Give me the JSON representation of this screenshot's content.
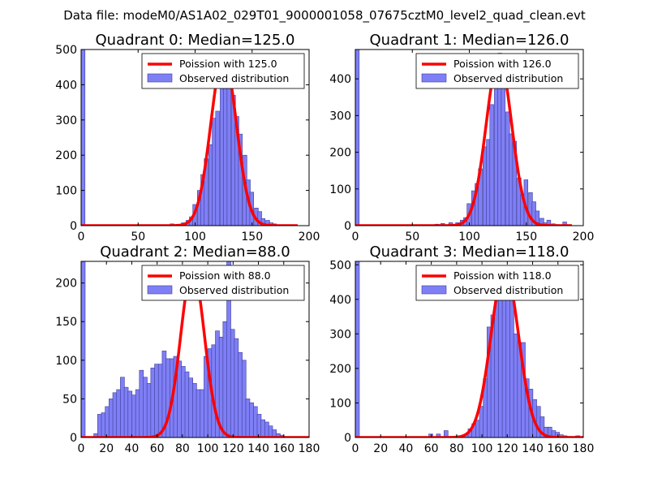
{
  "suptitle": "Data file: modeM0/AS1A02_029T01_9000001058_07675cztM0_level2_quad_clean.evt",
  "colors": {
    "bar_fill": "#7f7ff5",
    "bar_edge": "#3c3c9c",
    "curve": "#ff0000",
    "axes": "#000000",
    "background": "#ffffff"
  },
  "chart_data": [
    {
      "type": "bar",
      "title": "Quadrant 0: Median=125.0",
      "xlim": [
        0,
        200
      ],
      "ylim": [
        0,
        500
      ],
      "xticks": [
        "0",
        "50",
        "100",
        "150",
        "200"
      ],
      "xtick_values": [
        0,
        50,
        100,
        150,
        200
      ],
      "yticks": [
        "0",
        "100",
        "200",
        "300",
        "400",
        "500"
      ],
      "ytick_values": [
        0,
        100,
        200,
        300,
        400,
        500
      ],
      "legend": {
        "line_label": "Poission with 125.0",
        "bar_label": "Observed distribution",
        "position": "upper right"
      },
      "bin_width": 3.4,
      "bins": [
        [
          0,
          500
        ],
        [
          78,
          5
        ],
        [
          85,
          3
        ],
        [
          88,
          8
        ],
        [
          92,
          15
        ],
        [
          95,
          25
        ],
        [
          98,
          60
        ],
        [
          102,
          100
        ],
        [
          105,
          145
        ],
        [
          108,
          190
        ],
        [
          112,
          230
        ],
        [
          115,
          305
        ],
        [
          118,
          325
        ],
        [
          122,
          400
        ],
        [
          125,
          470
        ],
        [
          128,
          430
        ],
        [
          132,
          370
        ],
        [
          135,
          310
        ],
        [
          138,
          260
        ],
        [
          142,
          200
        ],
        [
          145,
          130
        ],
        [
          148,
          95
        ],
        [
          152,
          50
        ],
        [
          155,
          40
        ],
        [
          158,
          20
        ],
        [
          162,
          15
        ],
        [
          165,
          8
        ],
        [
          168,
          5
        ]
      ],
      "poisson_mean": 125.0,
      "curve_peak": 480,
      "curve_xmin": 0,
      "curve_xmax": 190
    },
    {
      "type": "bar",
      "title": "Quadrant 1: Median=126.0",
      "xlim": [
        0,
        200
      ],
      "ylim": [
        0,
        480
      ],
      "xticks": [
        "0",
        "50",
        "100",
        "150",
        "200"
      ],
      "xtick_values": [
        0,
        50,
        100,
        150,
        200
      ],
      "yticks": [
        "0",
        "100",
        "200",
        "300",
        "400"
      ],
      "ytick_values": [
        0,
        100,
        200,
        300,
        400
      ],
      "legend": {
        "line_label": "Poission with 126.0",
        "bar_label": "Observed distribution",
        "position": "upper right"
      },
      "bin_width": 3.4,
      "bins": [
        [
          0,
          480
        ],
        [
          70,
          4
        ],
        [
          75,
          6
        ],
        [
          82,
          8
        ],
        [
          88,
          8
        ],
        [
          92,
          15
        ],
        [
          95,
          22
        ],
        [
          98,
          60
        ],
        [
          102,
          95
        ],
        [
          105,
          115
        ],
        [
          108,
          155
        ],
        [
          112,
          215
        ],
        [
          115,
          235
        ],
        [
          118,
          330
        ],
        [
          122,
          425
        ],
        [
          125,
          470
        ],
        [
          128,
          450
        ],
        [
          132,
          310
        ],
        [
          135,
          250
        ],
        [
          138,
          230
        ],
        [
          142,
          130
        ],
        [
          145,
          85
        ],
        [
          148,
          125
        ],
        [
          152,
          90
        ],
        [
          155,
          65
        ],
        [
          158,
          40
        ],
        [
          162,
          20
        ],
        [
          165,
          8
        ],
        [
          168,
          15
        ],
        [
          172,
          5
        ],
        [
          175,
          3
        ],
        [
          182,
          10
        ]
      ],
      "poisson_mean": 126.0,
      "curve_peak": 455,
      "curve_xmin": 0,
      "curve_xmax": 190
    },
    {
      "type": "bar",
      "title": "Quadrant 2: Median=88.0",
      "xlim": [
        0,
        180
      ],
      "ylim": [
        0,
        228
      ],
      "xticks": [
        "0",
        "20",
        "40",
        "60",
        "80",
        "100",
        "120",
        "140",
        "160",
        "180"
      ],
      "xtick_values": [
        0,
        20,
        40,
        60,
        80,
        100,
        120,
        140,
        160,
        180
      ],
      "yticks": [
        "0",
        "50",
        "100",
        "150",
        "200"
      ],
      "ytick_values": [
        0,
        50,
        100,
        150,
        200
      ],
      "legend": {
        "line_label": "Poission with 88.0",
        "bar_label": "Observed distribution",
        "position": "upper right"
      },
      "bin_width": 3.2,
      "bins": [
        [
          0,
          228
        ],
        [
          10,
          5
        ],
        [
          13,
          30
        ],
        [
          16,
          32
        ],
        [
          19,
          40
        ],
        [
          22,
          50
        ],
        [
          25,
          58
        ],
        [
          28,
          62
        ],
        [
          31,
          78
        ],
        [
          34,
          65
        ],
        [
          37,
          60
        ],
        [
          40,
          55
        ],
        [
          43,
          62
        ],
        [
          46,
          87
        ],
        [
          49,
          78
        ],
        [
          52,
          70
        ],
        [
          55,
          90
        ],
        [
          58,
          95
        ],
        [
          61,
          95
        ],
        [
          64,
          112
        ],
        [
          67,
          102
        ],
        [
          70,
          102
        ],
        [
          73,
          105
        ],
        [
          76,
          99
        ],
        [
          79,
          92
        ],
        [
          82,
          85
        ],
        [
          85,
          77
        ],
        [
          88,
          70
        ],
        [
          91,
          62
        ],
        [
          94,
          62
        ],
        [
          97,
          105
        ],
        [
          100,
          115
        ],
        [
          103,
          120
        ],
        [
          106,
          138
        ],
        [
          109,
          130
        ],
        [
          112,
          150
        ],
        [
          115,
          230
        ],
        [
          118,
          140
        ],
        [
          121,
          128
        ],
        [
          124,
          110
        ],
        [
          127,
          100
        ],
        [
          130,
          50
        ],
        [
          133,
          45
        ],
        [
          136,
          40
        ],
        [
          139,
          30
        ],
        [
          142,
          23
        ],
        [
          145,
          20
        ],
        [
          148,
          15
        ],
        [
          151,
          10
        ],
        [
          154,
          5
        ],
        [
          157,
          3
        ]
      ],
      "poisson_mean": 88.0,
      "curve_peak": 218,
      "curve_xmin": 0,
      "curve_xmax": 180
    },
    {
      "type": "bar",
      "title": "Quadrant 3: Median=118.0",
      "xlim": [
        0,
        180
      ],
      "ylim": [
        0,
        510
      ],
      "xticks": [
        "0",
        "20",
        "40",
        "60",
        "80",
        "100",
        "120",
        "140",
        "160",
        "180"
      ],
      "xtick_values": [
        0,
        20,
        40,
        60,
        80,
        100,
        120,
        140,
        160,
        180
      ],
      "yticks": [
        "0",
        "100",
        "200",
        "300",
        "400",
        "500"
      ],
      "ytick_values": [
        0,
        100,
        200,
        300,
        400,
        500
      ],
      "legend": {
        "line_label": "Poission with 118.0",
        "bar_label": "Observed distribution",
        "position": "upper right"
      },
      "bin_width": 3.2,
      "bins": [
        [
          0,
          510
        ],
        [
          58,
          10
        ],
        [
          64,
          10
        ],
        [
          70,
          20
        ],
        [
          80,
          5
        ],
        [
          86,
          10
        ],
        [
          89,
          25
        ],
        [
          92,
          40
        ],
        [
          95,
          50
        ],
        [
          98,
          90
        ],
        [
          101,
          170
        ],
        [
          104,
          320
        ],
        [
          107,
          355
        ],
        [
          110,
          400
        ],
        [
          113,
          435
        ],
        [
          116,
          490
        ],
        [
          119,
          420
        ],
        [
          122,
          490
        ],
        [
          125,
          300
        ],
        [
          128,
          275
        ],
        [
          131,
          275
        ],
        [
          134,
          170
        ],
        [
          137,
          140
        ],
        [
          140,
          110
        ],
        [
          143,
          90
        ],
        [
          146,
          60
        ],
        [
          149,
          30
        ],
        [
          152,
          30
        ],
        [
          155,
          20
        ],
        [
          158,
          15
        ],
        [
          161,
          8
        ],
        [
          164,
          5
        ],
        [
          167,
          3
        ],
        [
          170,
          3
        ],
        [
          174,
          5
        ]
      ],
      "poisson_mean": 118.0,
      "curve_peak": 490,
      "curve_xmin": 0,
      "curve_xmax": 180
    }
  ]
}
